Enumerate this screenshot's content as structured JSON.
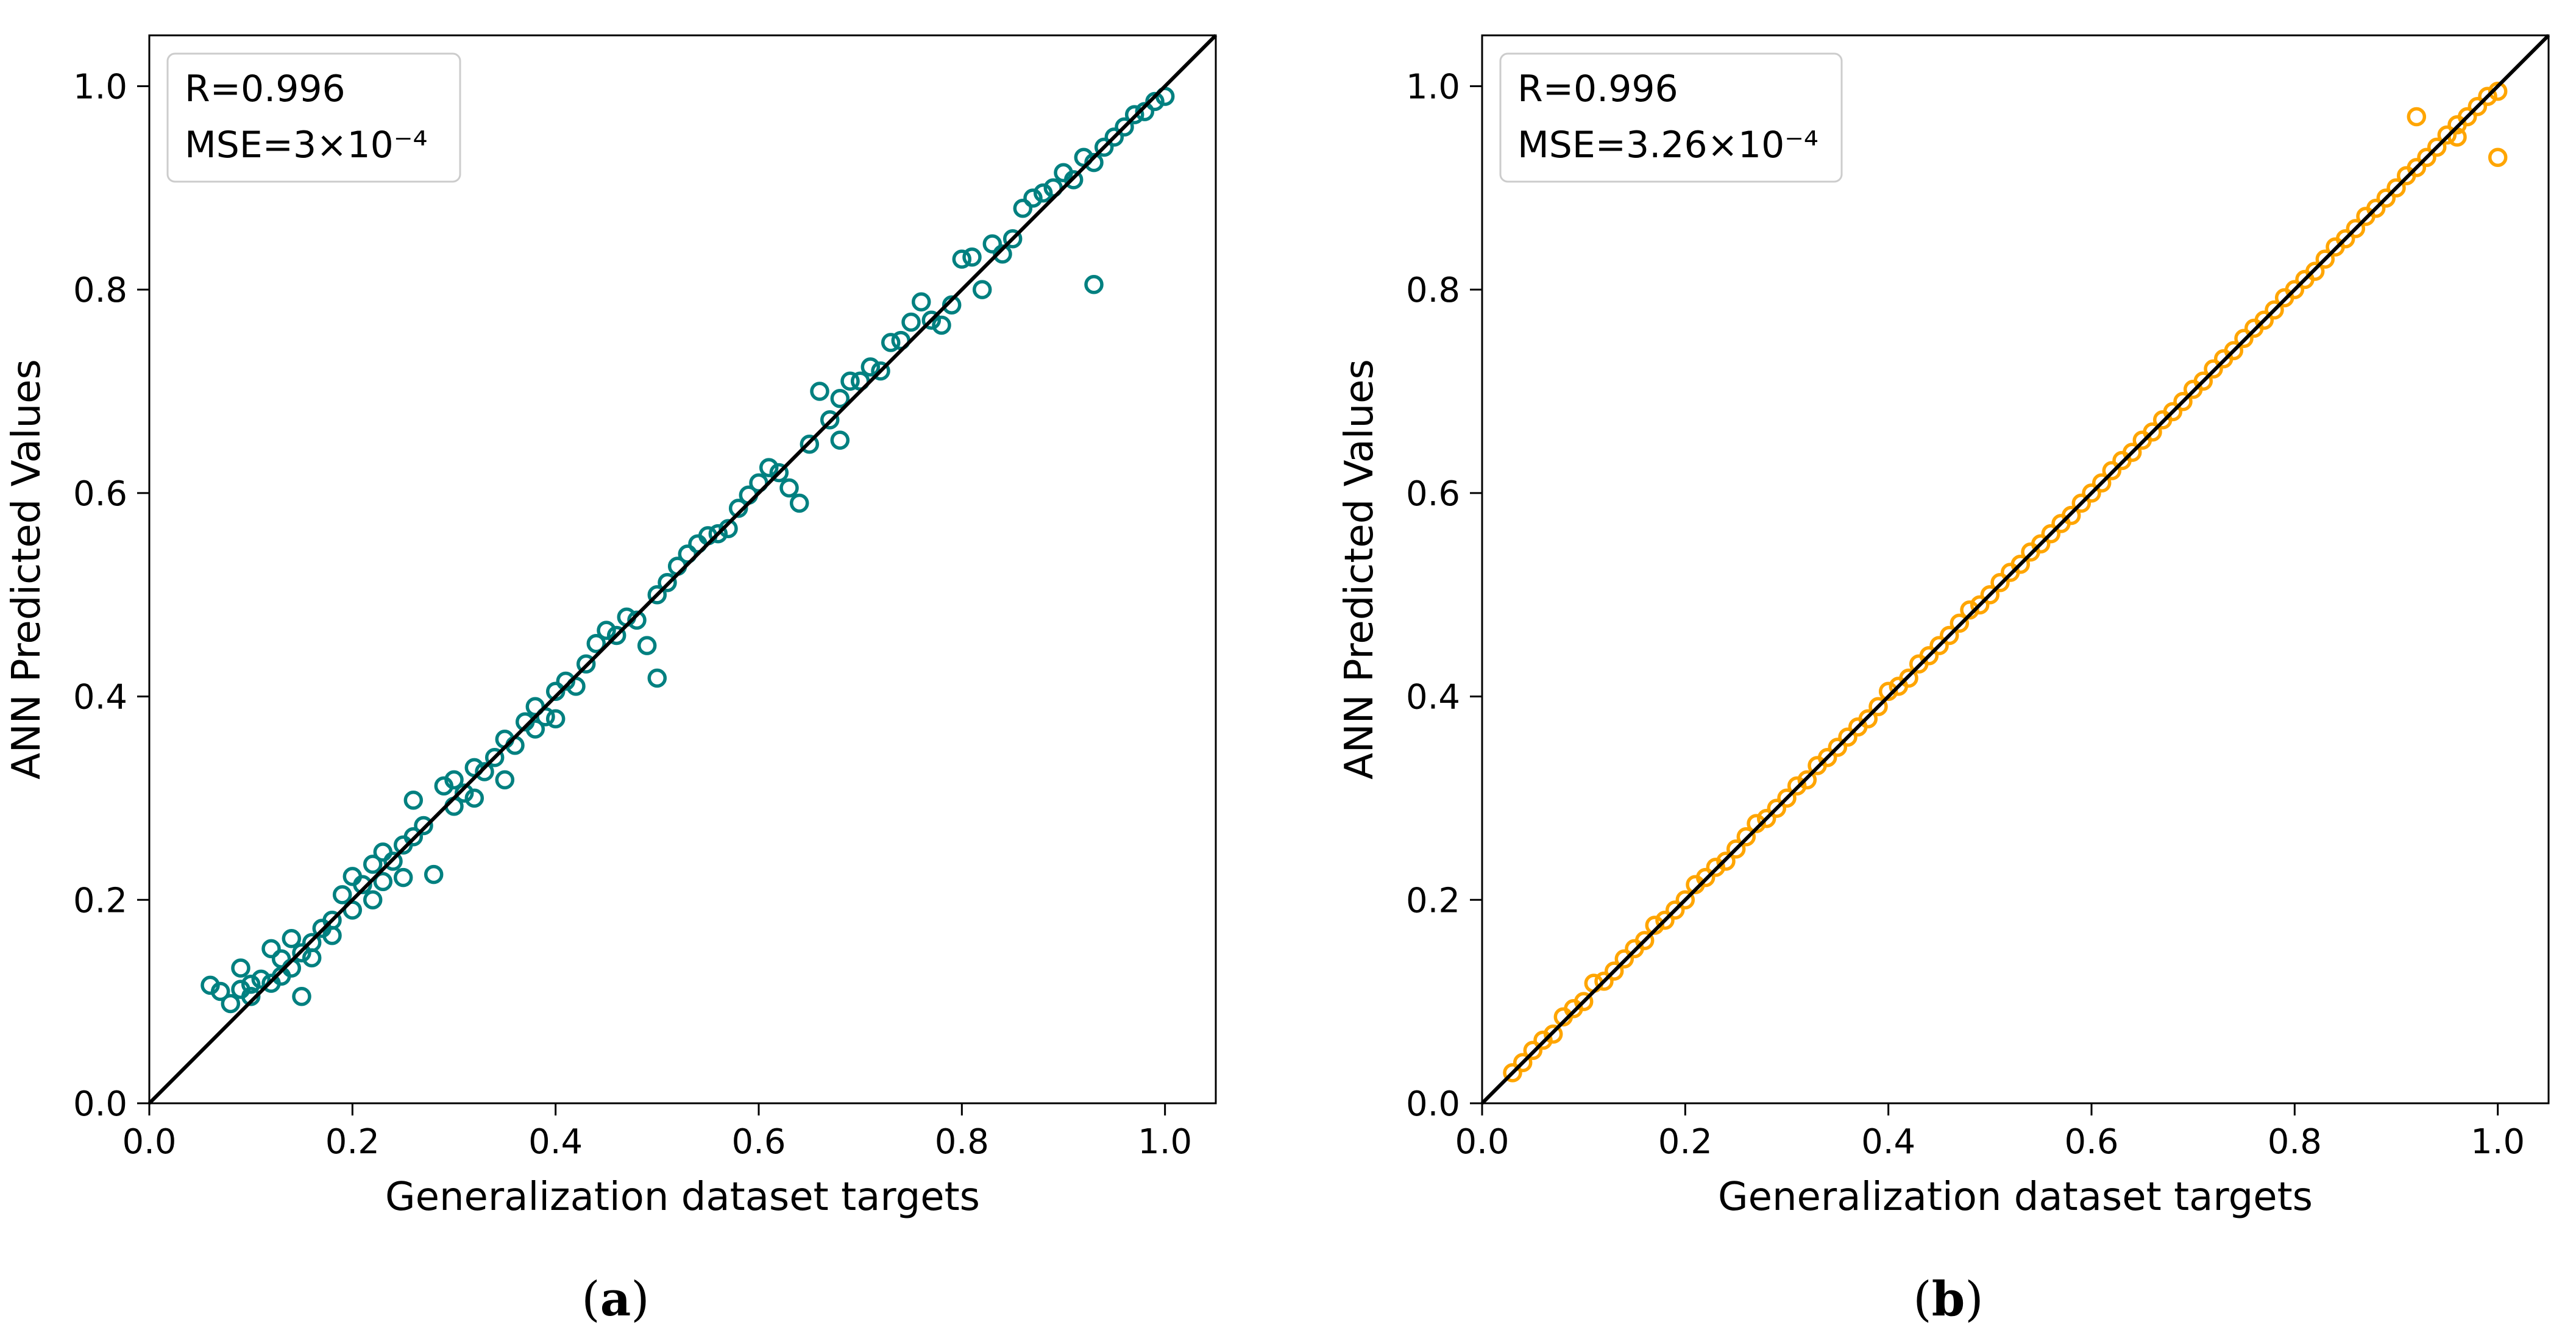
{
  "chart_data": [
    {
      "type": "scatter",
      "panel": "a",
      "caption_letter": "a",
      "xlabel": "Generalization dataset targets",
      "ylabel": "ANN Predicted Values",
      "xlim": [
        0.0,
        1.05
      ],
      "ylim": [
        0.0,
        1.05
      ],
      "xticks": [
        0.0,
        0.2,
        0.4,
        0.6,
        0.8,
        1.0
      ],
      "xtick_labels": [
        "0.0",
        "0.2",
        "0.4",
        "0.6",
        "0.8",
        "1.0"
      ],
      "yticks": [
        0.0,
        0.2,
        0.4,
        0.6,
        0.8,
        1.0
      ],
      "ytick_labels": [
        "0.0",
        "0.2",
        "0.4",
        "0.6",
        "0.8",
        "1.0"
      ],
      "marker_color": "#008080",
      "reference_line": {
        "x": [
          0.0,
          1.05
        ],
        "y": [
          0.0,
          1.05
        ],
        "color": "#000000"
      },
      "annotation": {
        "r_text": "R=0.996",
        "mse_text": "MSE=3×10⁻⁴"
      },
      "points": {
        "x": [
          0.06,
          0.07,
          0.08,
          0.09,
          0.09,
          0.1,
          0.1,
          0.11,
          0.12,
          0.12,
          0.13,
          0.13,
          0.14,
          0.14,
          0.15,
          0.15,
          0.16,
          0.16,
          0.17,
          0.18,
          0.18,
          0.19,
          0.2,
          0.2,
          0.21,
          0.22,
          0.22,
          0.23,
          0.23,
          0.24,
          0.25,
          0.25,
          0.26,
          0.26,
          0.27,
          0.28,
          0.29,
          0.3,
          0.3,
          0.31,
          0.32,
          0.32,
          0.33,
          0.34,
          0.35,
          0.35,
          0.36,
          0.37,
          0.38,
          0.38,
          0.39,
          0.4,
          0.4,
          0.41,
          0.42,
          0.43,
          0.44,
          0.45,
          0.46,
          0.47,
          0.48,
          0.49,
          0.5,
          0.5,
          0.51,
          0.52,
          0.53,
          0.54,
          0.55,
          0.56,
          0.57,
          0.58,
          0.59,
          0.6,
          0.61,
          0.62,
          0.63,
          0.64,
          0.65,
          0.66,
          0.67,
          0.68,
          0.68,
          0.69,
          0.7,
          0.71,
          0.72,
          0.73,
          0.74,
          0.75,
          0.76,
          0.77,
          0.78,
          0.79,
          0.8,
          0.81,
          0.82,
          0.83,
          0.84,
          0.85,
          0.86,
          0.87,
          0.88,
          0.89,
          0.9,
          0.91,
          0.92,
          0.93,
          0.93,
          0.94,
          0.95,
          0.96,
          0.97,
          0.98,
          0.99,
          1.0
        ],
        "y": [
          0.116,
          0.11,
          0.098,
          0.133,
          0.112,
          0.117,
          0.105,
          0.122,
          0.152,
          0.118,
          0.142,
          0.125,
          0.162,
          0.133,
          0.148,
          0.105,
          0.158,
          0.143,
          0.172,
          0.165,
          0.18,
          0.205,
          0.19,
          0.223,
          0.215,
          0.235,
          0.2,
          0.247,
          0.218,
          0.238,
          0.254,
          0.222,
          0.298,
          0.262,
          0.273,
          0.225,
          0.312,
          0.292,
          0.318,
          0.305,
          0.33,
          0.3,
          0.326,
          0.34,
          0.358,
          0.318,
          0.352,
          0.375,
          0.368,
          0.39,
          0.38,
          0.405,
          0.378,
          0.415,
          0.41,
          0.432,
          0.452,
          0.465,
          0.46,
          0.478,
          0.475,
          0.45,
          0.5,
          0.418,
          0.512,
          0.528,
          0.54,
          0.55,
          0.558,
          0.56,
          0.565,
          0.585,
          0.598,
          0.61,
          0.625,
          0.62,
          0.605,
          0.59,
          0.648,
          0.7,
          0.672,
          0.693,
          0.652,
          0.71,
          0.71,
          0.724,
          0.72,
          0.748,
          0.75,
          0.768,
          0.788,
          0.77,
          0.765,
          0.785,
          0.83,
          0.832,
          0.8,
          0.845,
          0.835,
          0.85,
          0.88,
          0.89,
          0.895,
          0.9,
          0.915,
          0.908,
          0.93,
          0.925,
          0.805,
          0.94,
          0.95,
          0.96,
          0.972,
          0.975,
          0.985,
          0.99
        ]
      }
    },
    {
      "type": "scatter",
      "panel": "b",
      "caption_letter": "b",
      "xlabel": "Generalization dataset targets",
      "ylabel": "ANN Predicted Values",
      "xlim": [
        0.0,
        1.05
      ],
      "ylim": [
        0.0,
        1.05
      ],
      "xticks": [
        0.0,
        0.2,
        0.4,
        0.6,
        0.8,
        1.0
      ],
      "xtick_labels": [
        "0.0",
        "0.2",
        "0.4",
        "0.6",
        "0.8",
        "1.0"
      ],
      "yticks": [
        0.0,
        0.2,
        0.4,
        0.6,
        0.8,
        1.0
      ],
      "ytick_labels": [
        "0.0",
        "0.2",
        "0.4",
        "0.6",
        "0.8",
        "1.0"
      ],
      "marker_color": "#FFA500",
      "reference_line": {
        "x": [
          0.0,
          1.05
        ],
        "y": [
          0.0,
          1.05
        ],
        "color": "#000000"
      },
      "annotation": {
        "r_text": "R=0.996",
        "mse_text": "MSE=3.26×10⁻⁴"
      },
      "points": {
        "x": [
          0.03,
          0.04,
          0.05,
          0.06,
          0.07,
          0.08,
          0.09,
          0.1,
          0.11,
          0.12,
          0.13,
          0.14,
          0.15,
          0.16,
          0.17,
          0.18,
          0.19,
          0.2,
          0.21,
          0.22,
          0.23,
          0.24,
          0.25,
          0.26,
          0.27,
          0.28,
          0.29,
          0.3,
          0.31,
          0.32,
          0.33,
          0.34,
          0.35,
          0.36,
          0.37,
          0.38,
          0.39,
          0.4,
          0.41,
          0.42,
          0.43,
          0.44,
          0.45,
          0.46,
          0.47,
          0.48,
          0.49,
          0.5,
          0.51,
          0.52,
          0.53,
          0.54,
          0.55,
          0.56,
          0.57,
          0.58,
          0.59,
          0.6,
          0.61,
          0.62,
          0.63,
          0.64,
          0.65,
          0.66,
          0.67,
          0.68,
          0.69,
          0.7,
          0.71,
          0.72,
          0.73,
          0.74,
          0.75,
          0.76,
          0.77,
          0.78,
          0.79,
          0.8,
          0.81,
          0.82,
          0.83,
          0.84,
          0.85,
          0.86,
          0.87,
          0.88,
          0.89,
          0.9,
          0.91,
          0.92,
          0.93,
          0.94,
          0.95,
          0.96,
          0.97,
          0.98,
          0.99,
          1.0,
          0.92,
          0.96,
          1.0
        ],
        "y": [
          0.03,
          0.04,
          0.052,
          0.062,
          0.068,
          0.085,
          0.093,
          0.1,
          0.118,
          0.12,
          0.13,
          0.142,
          0.152,
          0.16,
          0.175,
          0.18,
          0.19,
          0.2,
          0.215,
          0.222,
          0.232,
          0.238,
          0.25,
          0.262,
          0.275,
          0.28,
          0.29,
          0.3,
          0.312,
          0.318,
          0.332,
          0.34,
          0.35,
          0.36,
          0.37,
          0.378,
          0.39,
          0.405,
          0.41,
          0.418,
          0.432,
          0.44,
          0.45,
          0.46,
          0.472,
          0.485,
          0.49,
          0.5,
          0.512,
          0.522,
          0.53,
          0.542,
          0.55,
          0.56,
          0.57,
          0.578,
          0.59,
          0.6,
          0.61,
          0.622,
          0.632,
          0.64,
          0.652,
          0.66,
          0.672,
          0.68,
          0.69,
          0.702,
          0.71,
          0.722,
          0.732,
          0.74,
          0.752,
          0.762,
          0.77,
          0.78,
          0.792,
          0.8,
          0.81,
          0.818,
          0.83,
          0.842,
          0.85,
          0.86,
          0.872,
          0.88,
          0.89,
          0.9,
          0.912,
          0.92,
          0.93,
          0.94,
          0.952,
          0.962,
          0.97,
          0.98,
          0.99,
          0.995,
          0.97,
          0.95,
          0.93
        ]
      }
    }
  ]
}
